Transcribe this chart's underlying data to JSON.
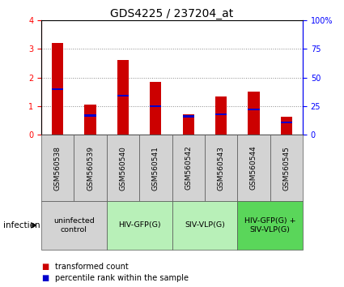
{
  "title": "GDS4225 / 237204_at",
  "samples": [
    "GSM560538",
    "GSM560539",
    "GSM560540",
    "GSM560541",
    "GSM560542",
    "GSM560543",
    "GSM560544",
    "GSM560545"
  ],
  "red_values": [
    3.2,
    1.05,
    2.62,
    1.85,
    0.72,
    1.33,
    1.52,
    0.62
  ],
  "blue_values": [
    40,
    17,
    34,
    25,
    16,
    18,
    22,
    11
  ],
  "ylim_left": [
    0,
    4
  ],
  "ylim_right": [
    0,
    100
  ],
  "yticks_left": [
    0,
    1,
    2,
    3,
    4
  ],
  "yticks_right": [
    0,
    25,
    50,
    75,
    100
  ],
  "yticklabels_right": [
    "0",
    "25",
    "50",
    "75",
    "100%"
  ],
  "groups": [
    {
      "label": "uninfected\ncontrol",
      "start": 0,
      "end": 2,
      "color": "#d3d3d3"
    },
    {
      "label": "HIV-GFP(G)",
      "start": 2,
      "end": 4,
      "color": "#b8f0b8"
    },
    {
      "label": "SIV-VLP(G)",
      "start": 4,
      "end": 6,
      "color": "#b8f0b8"
    },
    {
      "label": "HIV-GFP(G) +\nSIV-VLP(G)",
      "start": 6,
      "end": 8,
      "color": "#5ad65a"
    }
  ],
  "bar_width": 0.35,
  "red_color": "#cc0000",
  "blue_color": "#0000cc",
  "plot_bg_color": "#ffffff",
  "grid_color": "#888888",
  "infection_label": "infection",
  "legend_items": [
    {
      "color": "#cc0000",
      "label": "transformed count"
    },
    {
      "color": "#0000cc",
      "label": "percentile rank within the sample"
    }
  ],
  "title_fontsize": 10,
  "tick_fontsize": 7,
  "label_fontsize": 7.5
}
